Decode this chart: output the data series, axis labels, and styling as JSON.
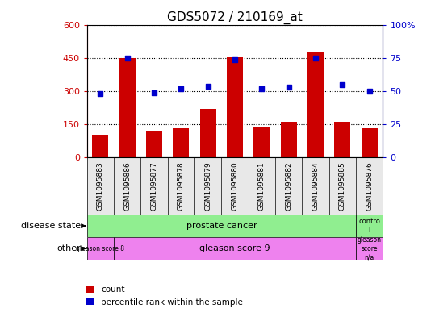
{
  "title": "GDS5072 / 210169_at",
  "samples": [
    "GSM1095883",
    "GSM1095886",
    "GSM1095877",
    "GSM1095878",
    "GSM1095879",
    "GSM1095880",
    "GSM1095881",
    "GSM1095882",
    "GSM1095884",
    "GSM1095885",
    "GSM1095876"
  ],
  "counts": [
    100,
    450,
    120,
    130,
    220,
    455,
    140,
    160,
    480,
    160,
    130
  ],
  "percentiles": [
    48,
    75,
    49,
    52,
    54,
    74,
    52,
    53,
    75,
    55,
    50
  ],
  "ylim_left": [
    0,
    600
  ],
  "ylim_right": [
    0,
    100
  ],
  "yticks_left": [
    0,
    150,
    300,
    450,
    600
  ],
  "ytick_labels_left": [
    "0",
    "150",
    "300",
    "450",
    "600"
  ],
  "yticks_right": [
    0,
    25,
    50,
    75,
    100
  ],
  "ytick_labels_right": [
    "0",
    "25",
    "50",
    "75",
    "100%"
  ],
  "bar_color": "#cc0000",
  "dot_color": "#0000cc",
  "prostate_color": "#90ee90",
  "control_color": "#90ee90",
  "gleason_color": "#ee82ee",
  "legend_items": [
    {
      "label": "count",
      "color": "#cc0000"
    },
    {
      "label": "percentile rank within the sample",
      "color": "#0000cc"
    }
  ],
  "dotted_line_color": "#000000",
  "background_color": "#ffffff",
  "tick_label_color_left": "#cc0000",
  "tick_label_color_right": "#0000cc",
  "tick_color_left": "#cc0000",
  "tick_color_right": "#0000cc"
}
